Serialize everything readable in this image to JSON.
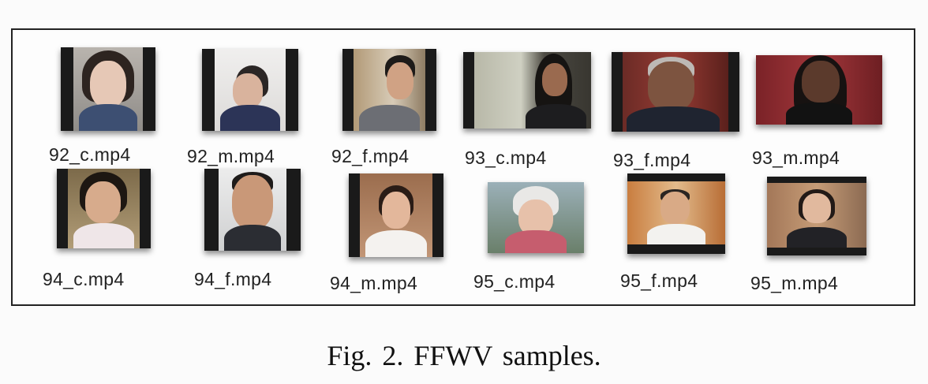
{
  "samples": [
    {
      "label": "92_c.mp4"
    },
    {
      "label": "92_m.mp4"
    },
    {
      "label": "92_f.mp4"
    },
    {
      "label": "93_c.mp4"
    },
    {
      "label": "93_f.mp4"
    },
    {
      "label": "93_m.mp4"
    },
    {
      "label": "94_c.mp4"
    },
    {
      "label": "94_f.mp4"
    },
    {
      "label": "94_m.mp4"
    },
    {
      "label": "95_c.mp4"
    },
    {
      "label": "95_f.mp4"
    },
    {
      "label": "95_m.mp4"
    }
  ],
  "caption": "Fig. 2.  FFWV samples."
}
